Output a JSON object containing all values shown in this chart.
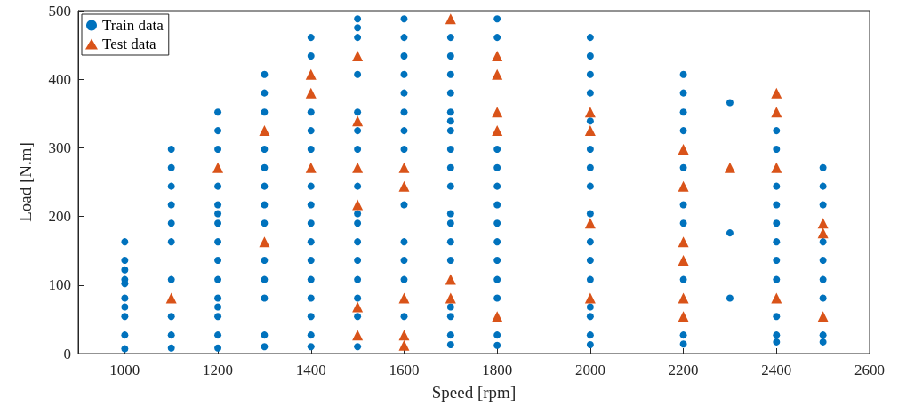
{
  "chart_data": {
    "type": "scatter",
    "xlabel": "Speed [rpm]",
    "ylabel": "Load [N.m]",
    "xlim": [
      900,
      2600
    ],
    "xticks": [
      1000,
      1200,
      1400,
      1600,
      1800,
      2000,
      2200,
      2400,
      2600
    ],
    "ylim": [
      0,
      500
    ],
    "yticks": [
      0,
      100,
      200,
      300,
      400,
      500
    ],
    "grid": false,
    "legend": "top left",
    "series": [
      {
        "name": "Train data",
        "color": "#0072bd",
        "marker": "circle",
        "x": [
          1000,
          1000,
          1000,
          1000,
          1000,
          1000,
          1000,
          1000,
          1000,
          1000,
          1100,
          1100,
          1100,
          1100,
          1100,
          1100,
          1100,
          1100,
          1100,
          1100,
          1200,
          1200,
          1200,
          1200,
          1200,
          1200,
          1200,
          1200,
          1200,
          1200,
          1200,
          1200,
          1200,
          1200,
          1200,
          1300,
          1300,
          1300,
          1300,
          1300,
          1300,
          1300,
          1300,
          1300,
          1300,
          1300,
          1300,
          1300,
          1400,
          1400,
          1400,
          1400,
          1400,
          1400,
          1400,
          1400,
          1400,
          1400,
          1400,
          1400,
          1400,
          1400,
          1400,
          1500,
          1500,
          1500,
          1500,
          1500,
          1500,
          1500,
          1500,
          1500,
          1500,
          1500,
          1500,
          1500,
          1500,
          1500,
          1500,
          1600,
          1600,
          1600,
          1600,
          1600,
          1600,
          1600,
          1600,
          1600,
          1600,
          1600,
          1600,
          1600,
          1700,
          1700,
          1700,
          1700,
          1700,
          1700,
          1700,
          1700,
          1700,
          1700,
          1700,
          1700,
          1700,
          1700,
          1700,
          1700,
          1700,
          1700,
          1800,
          1800,
          1800,
          1800,
          1800,
          1800,
          1800,
          1800,
          1800,
          1800,
          1800,
          1800,
          1800,
          2000,
          2000,
          2000,
          2000,
          2000,
          2000,
          2000,
          2000,
          2000,
          2000,
          2000,
          2000,
          2000,
          2000,
          2000,
          2000,
          2200,
          2200,
          2200,
          2200,
          2200,
          2200,
          2200,
          2200,
          2200,
          2200,
          2300,
          2300,
          2300,
          2400,
          2400,
          2400,
          2400,
          2400,
          2400,
          2400,
          2400,
          2400,
          2400,
          2400,
          2500,
          2500,
          2500,
          2500,
          2500,
          2500,
          2500,
          2500,
          2500
        ],
        "values": [
          7,
          27,
          54,
          68,
          81,
          102,
          108,
          122,
          136,
          163,
          8,
          27,
          54,
          108,
          163,
          190,
          217,
          244,
          271,
          298,
          8,
          27,
          54,
          68,
          81,
          108,
          136,
          163,
          190,
          204,
          217,
          244,
          298,
          325,
          352,
          10,
          27,
          81,
          108,
          136,
          190,
          217,
          244,
          271,
          298,
          352,
          380,
          407,
          10,
          27,
          54,
          81,
          108,
          136,
          163,
          190,
          217,
          244,
          298,
          325,
          352,
          434,
          461,
          10,
          54,
          81,
          108,
          136,
          163,
          190,
          204,
          244,
          298,
          325,
          352,
          407,
          461,
          475,
          488,
          54,
          108,
          136,
          163,
          217,
          298,
          325,
          352,
          380,
          407,
          434,
          461,
          488,
          13,
          27,
          54,
          68,
          136,
          163,
          190,
          204,
          244,
          271,
          298,
          325,
          339,
          352,
          380,
          407,
          434,
          461,
          12,
          27,
          81,
          108,
          136,
          163,
          190,
          217,
          244,
          271,
          298,
          461,
          488,
          13,
          27,
          54,
          68,
          108,
          136,
          163,
          204,
          244,
          271,
          298,
          339,
          380,
          407,
          434,
          461,
          14,
          27,
          108,
          190,
          217,
          271,
          325,
          352,
          380,
          407,
          81,
          176,
          366,
          17,
          27,
          54,
          108,
          136,
          163,
          190,
          217,
          244,
          298,
          325,
          17,
          27,
          81,
          108,
          136,
          163,
          217,
          244,
          271
        ]
      },
      {
        "name": "Test data",
        "color": "#d95319",
        "marker": "triangle",
        "x": [
          1100,
          1200,
          1300,
          1300,
          1400,
          1400,
          1400,
          1500,
          1500,
          1500,
          1500,
          1500,
          1500,
          1600,
          1600,
          1600,
          1600,
          1600,
          1700,
          1700,
          1700,
          1800,
          1800,
          1800,
          1800,
          1800,
          2000,
          2000,
          2000,
          2000,
          2200,
          2200,
          2200,
          2200,
          2200,
          2200,
          2300,
          2400,
          2400,
          2400,
          2400,
          2500,
          2500,
          2500
        ],
        "values": [
          81,
          271,
          163,
          325,
          271,
          380,
          407,
          27,
          68,
          217,
          271,
          339,
          434,
          12,
          27,
          81,
          244,
          271,
          81,
          108,
          488,
          54,
          325,
          352,
          407,
          434,
          81,
          190,
          325,
          352,
          54,
          81,
          136,
          163,
          244,
          298,
          271,
          81,
          271,
          352,
          380,
          54,
          176,
          190
        ]
      }
    ]
  }
}
